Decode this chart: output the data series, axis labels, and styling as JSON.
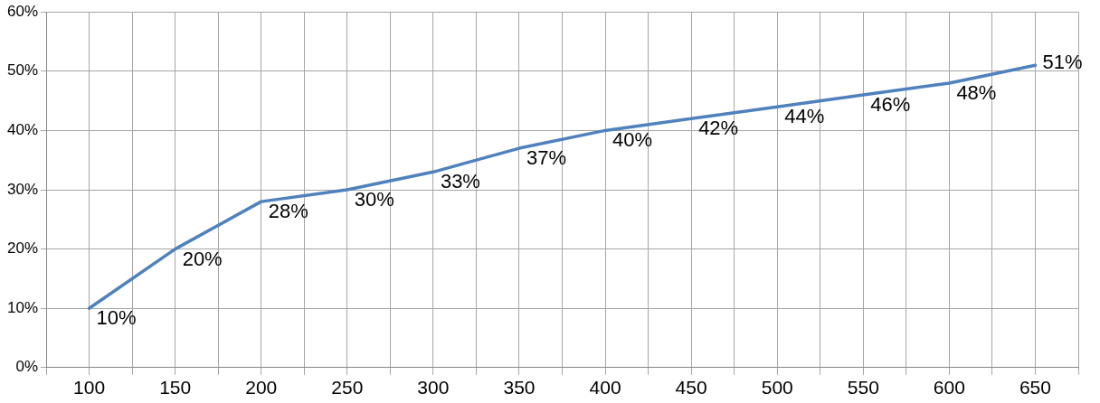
{
  "chart_data": {
    "type": "line",
    "x": [
      100,
      150,
      200,
      250,
      300,
      350,
      400,
      450,
      500,
      550,
      600,
      650
    ],
    "series": [
      {
        "color": "#4f81bd",
        "values": [
          10,
          20,
          28,
          30,
          33,
          37,
          40,
          42,
          44,
          46,
          48,
          51
        ],
        "value_labels": [
          "10%",
          "20%",
          "28%",
          "30%",
          "33%",
          "37%",
          "40%",
          "42%",
          "44%",
          "46%",
          "48%",
          "51%"
        ]
      }
    ],
    "xlim": [
      75,
      675
    ],
    "xticks": [
      {
        "value": 75,
        "label": null
      },
      100,
      {
        "value": 125,
        "label": null
      },
      150,
      {
        "value": 175,
        "label": null
      },
      200,
      {
        "value": 225,
        "label": null
      },
      250,
      {
        "value": 275,
        "label": null
      },
      300,
      {
        "value": 325,
        "label": null
      },
      350,
      {
        "value": 375,
        "label": null
      },
      400,
      {
        "value": 425,
        "label": null
      },
      450,
      {
        "value": 475,
        "label": null
      },
      500,
      {
        "value": 525,
        "label": null
      },
      550,
      {
        "value": 575,
        "label": null
      },
      600,
      {
        "value": 625,
        "label": null
      },
      650,
      {
        "value": 675,
        "label": null
      }
    ],
    "ylim": [
      0,
      60
    ],
    "yticks": [
      {
        "value": 0,
        "label": "0%"
      },
      {
        "value": 10,
        "label": "10%"
      },
      {
        "value": 20,
        "label": "20%"
      },
      {
        "value": 30,
        "label": "30%"
      },
      {
        "value": 40,
        "label": "40%"
      },
      {
        "value": 50,
        "label": "50%"
      },
      {
        "value": 60,
        "label": "60%"
      }
    ],
    "grid": true,
    "marker": "none",
    "line_style": "solid",
    "legend": false
  }
}
